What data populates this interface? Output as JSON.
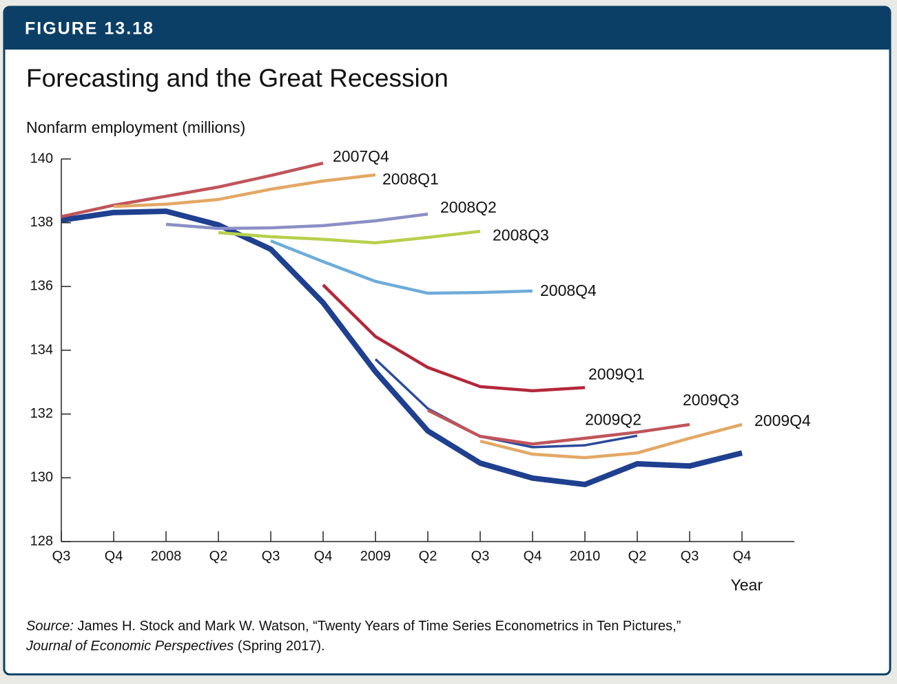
{
  "figure_label": "FIGURE 13.18",
  "chart_data": {
    "type": "line",
    "title": "Forecasting and the Great Recession",
    "ylabel": "Nonfarm employment (millions)",
    "xlabel": "Year",
    "categories": [
      "Q3",
      "Q4",
      "2008",
      "Q2",
      "Q3",
      "Q4",
      "2009",
      "Q2",
      "Q3",
      "Q4",
      "2010",
      "Q2",
      "Q3",
      "Q4"
    ],
    "ylim": [
      128,
      140
    ],
    "yticks": [
      128,
      130,
      132,
      134,
      136,
      138,
      140
    ],
    "series": [
      {
        "color": "#1f3f8f",
        "values": [
          138.08,
          138.32,
          138.36,
          137.93,
          137.17,
          135.49,
          133.33,
          131.47,
          130.46,
          129.99,
          129.79,
          130.44,
          130.37,
          130.78
        ]
      },
      {
        "name": "2007Q4",
        "color": "#c0545a",
        "values": [
          138.19,
          138.55,
          138.83,
          139.12,
          139.48,
          139.87,
          null,
          null,
          null,
          null,
          null,
          null,
          null,
          null
        ]
      },
      {
        "name": "2008Q1",
        "color": "#e3a865",
        "values": [
          null,
          138.51,
          138.58,
          138.73,
          139.05,
          139.31,
          139.5,
          null,
          null,
          null,
          null,
          null,
          null,
          null
        ]
      },
      {
        "name": "2008Q2",
        "color": "#8b8fc6",
        "values": [
          null,
          null,
          137.95,
          137.82,
          137.84,
          137.91,
          138.06,
          138.27,
          null,
          null,
          null,
          null,
          null,
          null
        ]
      },
      {
        "name": "2008Q3",
        "color": "#b6d04c",
        "values": [
          null,
          null,
          null,
          137.69,
          137.56,
          137.48,
          137.37,
          137.54,
          137.73,
          null,
          null,
          null,
          null,
          null
        ]
      },
      {
        "name": "2008Q4",
        "color": "#6eacd9",
        "values": [
          null,
          null,
          null,
          null,
          137.43,
          136.78,
          136.16,
          135.79,
          135.81,
          135.86,
          null,
          null,
          null,
          null
        ]
      },
      {
        "name": "2009Q1",
        "color": "#b3283b",
        "values": [
          null,
          null,
          null,
          null,
          null,
          136.05,
          134.43,
          133.46,
          132.86,
          132.73,
          132.83,
          null,
          null,
          null
        ]
      },
      {
        "name": "2009Q2",
        "color": "#2b4a9a",
        "values": [
          null,
          null,
          null,
          null,
          null,
          null,
          133.72,
          132.17,
          131.3,
          130.96,
          131.02,
          131.32,
          null,
          null
        ]
      },
      {
        "name": "2009Q3",
        "color": "#c0545a",
        "values": [
          null,
          null,
          null,
          null,
          null,
          null,
          null,
          132.12,
          131.3,
          131.06,
          131.24,
          131.43,
          131.67,
          null
        ]
      },
      {
        "name": "2009Q4",
        "color": "#e3a865",
        "values": [
          null,
          null,
          null,
          null,
          null,
          null,
          null,
          null,
          131.15,
          130.74,
          130.63,
          130.78,
          131.24,
          131.67
        ]
      }
    ],
    "source": {
      "label": "Source:",
      "text": "James H. Stock and Mark W. Watson, “Twenty Years of Time Series Econometrics in Ten Pictures,”",
      "journal": "Journal of Economic Perspectives",
      "detail": "(Spring 2017)."
    }
  }
}
